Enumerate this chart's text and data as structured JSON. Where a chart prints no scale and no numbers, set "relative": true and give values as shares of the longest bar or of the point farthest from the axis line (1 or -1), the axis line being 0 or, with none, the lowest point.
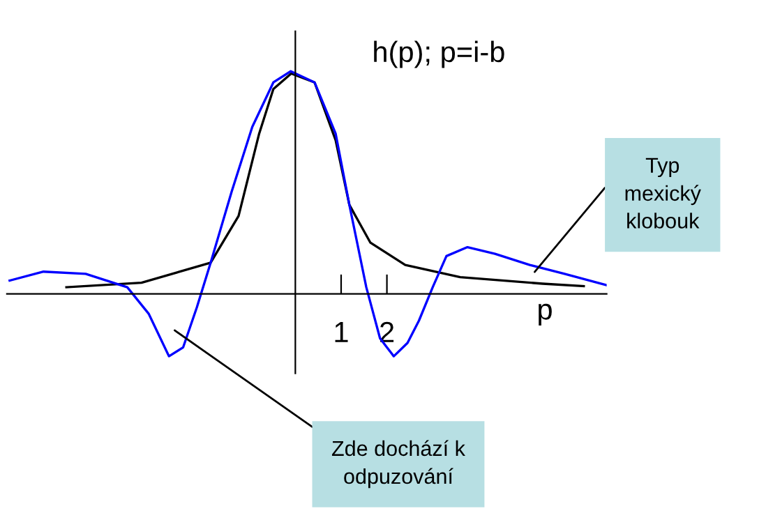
{
  "chart_data": {
    "type": "line",
    "relative": true,
    "title": "h(p); p=i-b",
    "xlabel": "p",
    "xlim": [
      -6.3,
      6.8
    ],
    "xticks": [
      1,
      2
    ],
    "grid": false,
    "marker": "none",
    "line_style": "solid",
    "series": [
      {
        "color": "#000000",
        "x": [
          -5.0,
          -3.36,
          -1.85,
          -1.24,
          -0.79,
          -0.48,
          -0.09,
          0.42,
          0.88,
          1.18,
          1.64,
          2.4,
          3.6,
          5.4,
          6.3
        ],
        "values": [
          0.03,
          0.05,
          0.14,
          0.35,
          0.72,
          0.92,
          0.99,
          0.95,
          0.69,
          0.4,
          0.23,
          0.13,
          0.075,
          0.046,
          0.035
        ]
      },
      {
        "color": "#0000ff",
        "x": [
          -6.24,
          -5.5,
          -4.58,
          -3.67,
          -3.2,
          -2.76,
          -2.45,
          -2.15,
          -1.85,
          -1.39,
          -0.94,
          -0.48,
          -0.1,
          0.42,
          0.88,
          1.18,
          1.55,
          1.85,
          2.15,
          2.45,
          2.7,
          3.0,
          3.3,
          3.76,
          4.36,
          5.12,
          5.88,
          6.79
        ],
        "values": [
          0.06,
          0.1,
          0.09,
          0.03,
          -0.09,
          -0.28,
          -0.24,
          -0.06,
          0.14,
          0.46,
          0.75,
          0.95,
          1.0,
          0.95,
          0.72,
          0.4,
          0.03,
          -0.2,
          -0.28,
          -0.22,
          -0.12,
          0.03,
          0.17,
          0.21,
          0.18,
          0.13,
          0.09,
          0.04
        ]
      }
    ],
    "annotations": [
      "Typ\nmexický\nklobouk",
      "Zde dochází k\nodpuzování"
    ]
  }
}
